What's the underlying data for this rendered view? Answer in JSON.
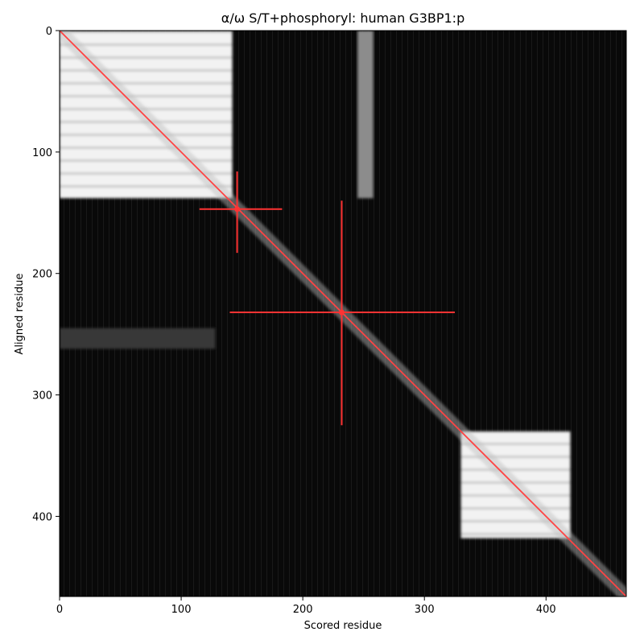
{
  "chart_data": {
    "type": "heatmap",
    "title": "α/ω S/T+phosphoryl: human G3BP1:p",
    "xlabel": "Scored residue",
    "ylabel": "Aligned residue",
    "xlim": [
      0,
      466
    ],
    "ylim": [
      466,
      0
    ],
    "xticks": [
      0,
      100,
      200,
      300,
      400
    ],
    "yticks": [
      0,
      100,
      200,
      300,
      400
    ],
    "colormap": "greys_r",
    "grid": false,
    "colors": {
      "diagonal": "#ff4444",
      "crosshair": "#ff3333",
      "background": "#000000",
      "high": "#f4f4f4"
    },
    "blocks": [
      {
        "x": [
          0,
          142
        ],
        "y": [
          0,
          138
        ],
        "level": 0.95
      },
      {
        "x": [
          330,
          420
        ],
        "y": [
          330,
          418
        ],
        "level": 0.93
      },
      {
        "x": [
          245,
          258
        ],
        "y": [
          0,
          138
        ],
        "level": 0.55
      },
      {
        "x": [
          0,
          128
        ],
        "y": [
          245,
          262
        ],
        "level": 0.22
      }
    ],
    "diagonal": {
      "from": [
        0,
        0
      ],
      "to": [
        466,
        466
      ]
    },
    "crosshairs": [
      {
        "x": 146,
        "y": 147,
        "x_range": [
          115,
          183
        ],
        "y_range": [
          116,
          183
        ]
      },
      {
        "x": 232,
        "y": 232,
        "x_range": [
          140,
          325
        ],
        "y_range": [
          140,
          325
        ]
      }
    ]
  }
}
